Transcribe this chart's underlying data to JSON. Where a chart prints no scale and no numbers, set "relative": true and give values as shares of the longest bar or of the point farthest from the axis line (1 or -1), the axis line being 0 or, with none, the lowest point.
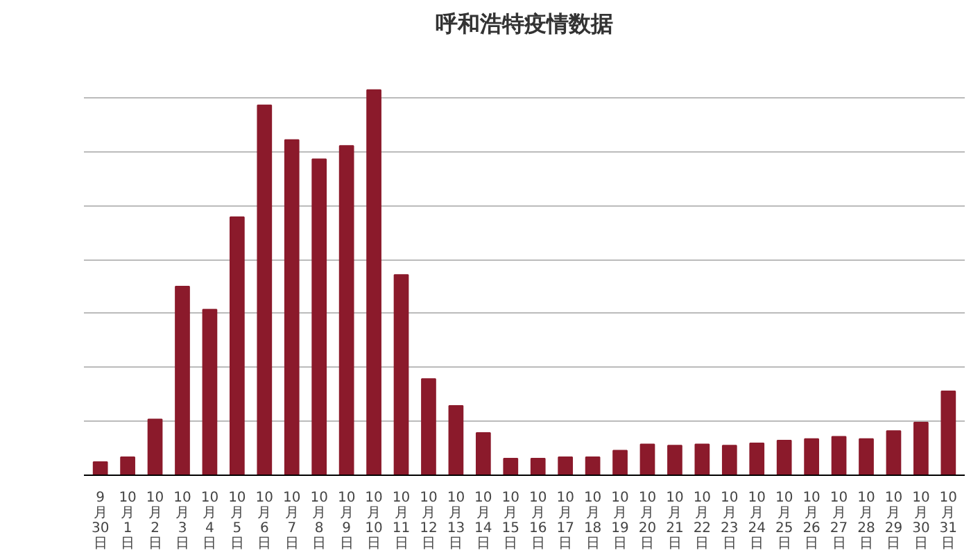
{
  "chart_data": {
    "type": "bar",
    "title": "呼和浩特疫情数据",
    "relative": true,
    "grid": "y",
    "color": "#8b1a2b",
    "categories": [
      "9月30日",
      "10月1日",
      "10月2日",
      "10月3日",
      "10月4日",
      "10月5日",
      "10月6日",
      "10月7日",
      "10月8日",
      "10月9日",
      "10月10日",
      "10月11日",
      "10月12日",
      "10月13日",
      "10月14日",
      "10月15日",
      "10月16日",
      "10月17日",
      "10月18日",
      "10月19日",
      "10月20日",
      "10月21日",
      "10月22日",
      "10月23日",
      "10月24日",
      "10月25日",
      "10月26日",
      "10月27日",
      "10月28日",
      "10月29日",
      "10月30日",
      "10月31日"
    ],
    "values": [
      0.034,
      0.047,
      0.145,
      0.49,
      0.43,
      0.67,
      0.96,
      0.87,
      0.82,
      0.855,
      1.0,
      0.52,
      0.25,
      0.18,
      0.11,
      0.043,
      0.043,
      0.047,
      0.047,
      0.064,
      0.08,
      0.077,
      0.08,
      0.077,
      0.083,
      0.09,
      0.094,
      0.1,
      0.094,
      0.115,
      0.137,
      0.218
    ]
  }
}
